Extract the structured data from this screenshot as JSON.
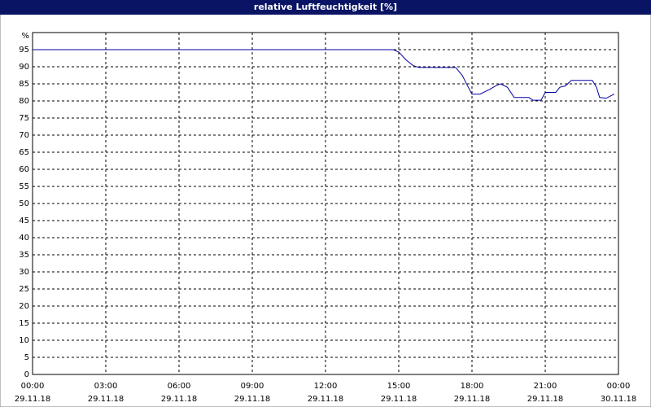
{
  "chart_data": {
    "type": "line",
    "title": "relative Luftfeuchtigkeit [%]",
    "y_unit": "%",
    "color": "#0000a0",
    "grid": true,
    "x": [
      0,
      14.77,
      15.0,
      15.3,
      15.6,
      15.83,
      17.33,
      17.6,
      17.85,
      18.0,
      18.33,
      18.7,
      19.0,
      19.17,
      19.45,
      19.73,
      20.33,
      20.5,
      20.83,
      21.0,
      21.43,
      21.6,
      21.83,
      22.07,
      22.93,
      23.1,
      23.23,
      23.5,
      23.83
    ],
    "values": [
      95,
      95,
      94.3,
      92,
      90.3,
      89.8,
      89.8,
      87.5,
      84,
      82,
      82,
      83.3,
      84.5,
      85,
      84,
      81,
      81,
      80.2,
      80.2,
      82.5,
      82.5,
      84,
      84.4,
      86,
      86,
      84,
      81,
      80.8,
      82
    ],
    "xlim": [
      0,
      24
    ],
    "xticks": [
      {
        "value": 0,
        "label": "00:00"
      },
      {
        "value": 3,
        "label": "03:00"
      },
      {
        "value": 6,
        "label": "06:00"
      },
      {
        "value": 9,
        "label": "09:00"
      },
      {
        "value": 12,
        "label": "12:00"
      },
      {
        "value": 15,
        "label": "15:00"
      },
      {
        "value": 18,
        "label": "18:00"
      },
      {
        "value": 21,
        "label": "21:00"
      },
      {
        "value": 24,
        "label": "00:00"
      }
    ],
    "xtick_dates": [
      "29.11.18",
      "29.11.18",
      "29.11.18",
      "29.11.18",
      "29.11.18",
      "29.11.18",
      "29.11.18",
      "29.11.18",
      "30.11.18"
    ],
    "ylim": [
      0,
      100
    ],
    "yticks": [
      0,
      5,
      10,
      15,
      20,
      25,
      30,
      35,
      40,
      45,
      50,
      55,
      60,
      65,
      70,
      75,
      80,
      85,
      90,
      95
    ]
  }
}
